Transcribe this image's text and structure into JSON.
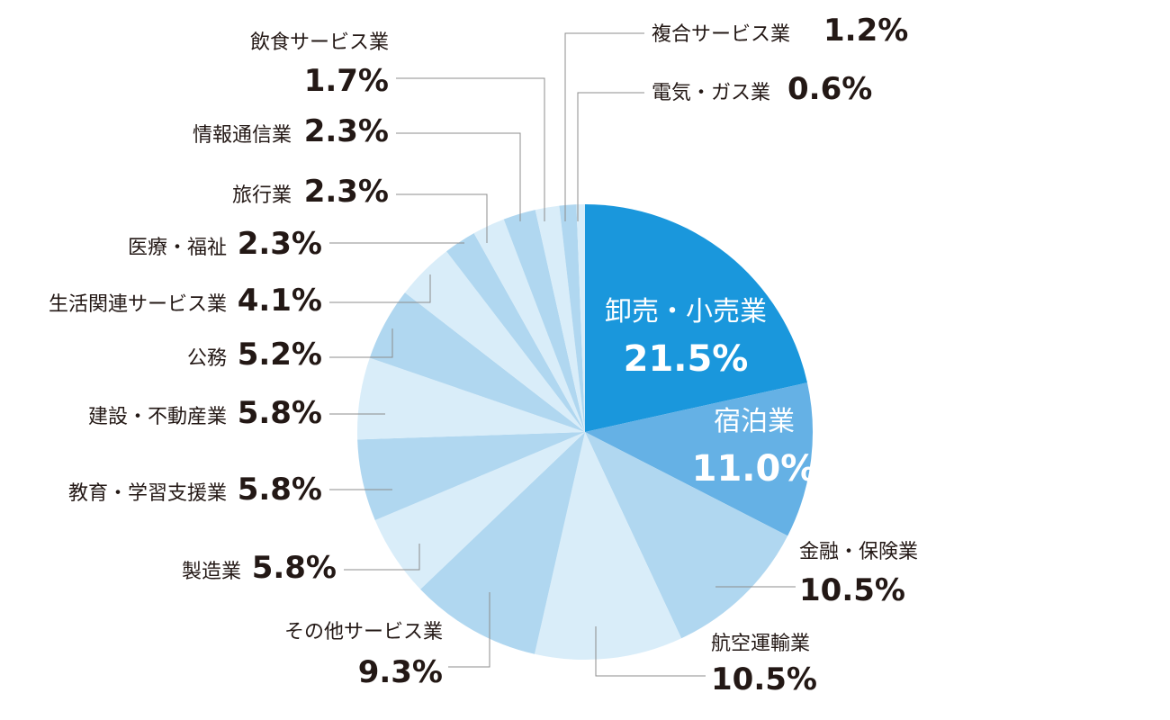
{
  "chart_data": {
    "type": "pie",
    "title": "",
    "start_angle_deg": 0,
    "direction": "clockwise",
    "slices": [
      {
        "name": "卸売・小売業",
        "value_label": "21.5%",
        "value": 21.5,
        "color": "#1a97dc",
        "label_inside": true
      },
      {
        "name": "宿泊業",
        "value_label": "11.0%",
        "value": 11.0,
        "color": "#65b1e5",
        "label_inside": true
      },
      {
        "name": "金融・保険業",
        "value_label": "10.5%",
        "value": 10.5,
        "color": "#b0d7f0",
        "label_inside": false
      },
      {
        "name": "航空運輸業",
        "value_label": "10.5%",
        "value": 10.5,
        "color": "#d9edf9",
        "label_inside": false
      },
      {
        "name": "その他サービス業",
        "value_label": "9.3%",
        "value": 9.3,
        "color": "#b0d7f0",
        "label_inside": false
      },
      {
        "name": "製造業",
        "value_label": "5.8%",
        "value": 5.8,
        "color": "#d9edf9",
        "label_inside": false
      },
      {
        "name": "教育・学習支援業",
        "value_label": "5.8%",
        "value": 5.8,
        "color": "#b0d7f0",
        "label_inside": false
      },
      {
        "name": "建設・不動産業",
        "value_label": "5.8%",
        "value": 5.8,
        "color": "#d9edf9",
        "label_inside": false
      },
      {
        "name": "公務",
        "value_label": "5.2%",
        "value": 5.2,
        "color": "#b0d7f0",
        "label_inside": false
      },
      {
        "name": "生活関連サービス業",
        "value_label": "4.1%",
        "value": 4.1,
        "color": "#d9edf9",
        "label_inside": false
      },
      {
        "name": "医療・福祉",
        "value_label": "2.3%",
        "value": 2.3,
        "color": "#b0d7f0",
        "label_inside": false
      },
      {
        "name": "旅行業",
        "value_label": "2.3%",
        "value": 2.3,
        "color": "#d9edf9",
        "label_inside": false
      },
      {
        "name": "情報通信業",
        "value_label": "2.3%",
        "value": 2.3,
        "color": "#b0d7f0",
        "label_inside": false
      },
      {
        "name": "飲食サービス業",
        "value_label": "1.7%",
        "value": 1.7,
        "color": "#d9edf9",
        "label_inside": false
      },
      {
        "name": "複合サービス業",
        "value_label": "1.2%",
        "value": 1.2,
        "color": "#b0d7f0",
        "label_inside": false
      },
      {
        "name": "電気・ガス業",
        "value_label": "0.6%",
        "value": 0.6,
        "color": "#d9edf9",
        "label_inside": false
      }
    ]
  }
}
